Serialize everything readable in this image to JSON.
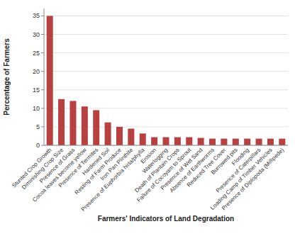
{
  "chart_data": {
    "type": "bar",
    "categories": [
      "Stunted Crop Growth",
      "Diminishing Crop Size",
      "Presence of Grass",
      "Cocoa leaves become yellow",
      "Presence of Termites",
      "Hardened Soil",
      "Resting of Farm Produce",
      "Iron Pan Plinthite",
      "Presence of Euphorbia hirta/phylla",
      "Erosion",
      "Waterlogging",
      "Death of Plantain Crops",
      "Failure of Cocoyam to Sprout",
      "Presence of Wet Sand",
      "Absence of Earthworms",
      "Reduced Tree Cover",
      "Burrowed pits",
      "Flooding",
      "Presence of Caterpillars",
      "Loading Camp of Timber Vehicles",
      "Presence of Diplopoda (Millipede)"
    ],
    "values": [
      35,
      12.5,
      12,
      10.5,
      9.5,
      6.2,
      5.0,
      4.5,
      3.2,
      2.2,
      2.2,
      2.2,
      2.2,
      2.0,
      1.8,
      1.8,
      1.8,
      1.8,
      1.8,
      1.8,
      1.8
    ],
    "color": "#b94040",
    "xlabel": "Farmers' Indicators of Land Degradation",
    "ylabel": "Percentage of Farmers",
    "ylim": [
      0,
      37
    ],
    "yticks": [
      0,
      5,
      10,
      15,
      20,
      25,
      30,
      35
    ],
    "grid": true
  }
}
